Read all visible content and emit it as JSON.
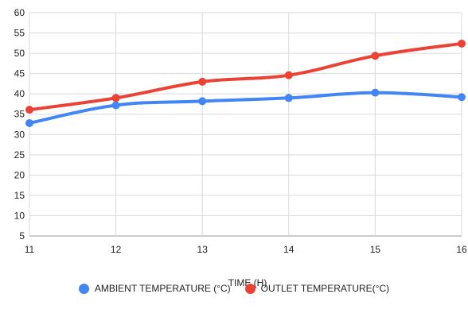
{
  "chart_data": {
    "type": "line",
    "title": "",
    "xlabel": "TIME (H)",
    "ylabel": "",
    "x": [
      11,
      12,
      13,
      14,
      15,
      16
    ],
    "ylim": [
      5,
      60
    ],
    "yticks": [
      5,
      10,
      15,
      20,
      25,
      30,
      35,
      40,
      45,
      50,
      55,
      60
    ],
    "grid": true,
    "legend_position": "bottom",
    "series": [
      {
        "name": "AMBIENT TEMPERATURE (°C)",
        "color": "#4285f4",
        "values": [
          32.8,
          37.2,
          38.2,
          39.0,
          40.3,
          39.2
        ]
      },
      {
        "name": "OUTLET TEMPERATURE(°C)",
        "color": "#ea4335",
        "values": [
          36.1,
          39.0,
          43.0,
          44.6,
          49.4,
          52.4
        ]
      }
    ]
  }
}
